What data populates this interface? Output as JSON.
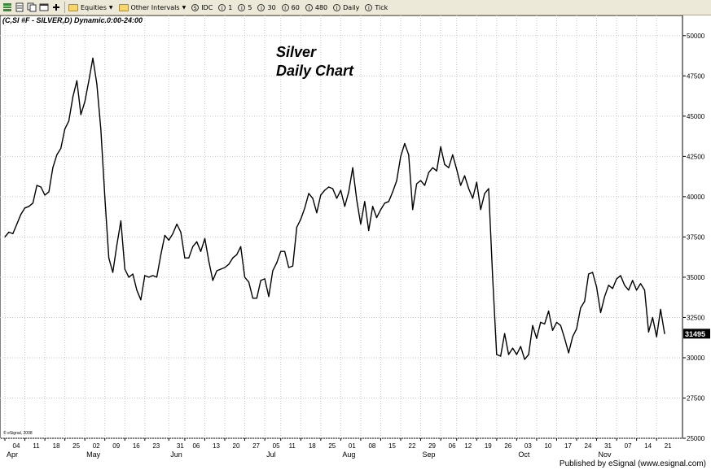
{
  "toolbar": {
    "items": [
      {
        "label": "Equities",
        "kind": "folder",
        "dropdown": true
      },
      {
        "label": "Other Intervals",
        "kind": "folder",
        "dropdown": true
      },
      {
        "label": "IDC",
        "kind": "interval",
        "glyph": "S"
      },
      {
        "label": "1",
        "kind": "interval",
        "glyph": "I"
      },
      {
        "label": "5",
        "kind": "interval",
        "glyph": "I"
      },
      {
        "label": "30",
        "kind": "interval",
        "glyph": "I"
      },
      {
        "label": "60",
        "kind": "interval",
        "glyph": "I"
      },
      {
        "label": "480",
        "kind": "interval",
        "glyph": "I"
      },
      {
        "label": "Daily",
        "kind": "interval",
        "glyph": "I"
      },
      {
        "label": "Tick",
        "kind": "interval",
        "glyph": "I"
      }
    ]
  },
  "chart": {
    "symbol_header": "(C,SI #F - SILVER,D) Dynamic.0:00-24:00",
    "title_line1": "Silver",
    "title_line2": "Daily Chart",
    "copyright": "© eSignal, 2008",
    "last_price_label": "31495",
    "colors": {
      "line": "#000000",
      "grid": "#c8c8c8",
      "axis": "#000000",
      "price_tag_bg": "#000000",
      "price_tag_text": "#ffffff"
    }
  },
  "footer": {
    "text": "Published by eSignal (www.esignal.com)"
  },
  "chart_data": {
    "type": "line",
    "title": "Silver Daily Chart",
    "ylim": [
      25000,
      51000
    ],
    "y_ticks": [
      25000,
      27500,
      30000,
      32500,
      35000,
      37500,
      40000,
      42500,
      45000,
      47500,
      50000
    ],
    "grid": true,
    "x_ticks": [
      "04",
      "11",
      "18",
      "25",
      "02",
      "09",
      "16",
      "23",
      "31",
      "06",
      "13",
      "20",
      "27",
      "05",
      "11",
      "18",
      "25",
      "01",
      "08",
      "15",
      "22",
      "29",
      "06",
      "12",
      "19",
      "26",
      "03",
      "10",
      "17",
      "24",
      "31",
      "07",
      "14",
      "21"
    ],
    "x_tick_index": [
      0,
      5,
      10,
      15,
      20,
      25,
      30,
      35,
      41,
      45,
      50,
      55,
      60,
      65,
      69,
      74,
      79,
      84,
      89,
      94,
      99,
      104,
      109,
      113,
      118,
      123,
      128,
      133,
      138,
      143,
      148,
      153,
      158,
      163
    ],
    "month_labels": [
      {
        "label": "Apr",
        "index": 0
      },
      {
        "label": "May",
        "index": 20
      },
      {
        "label": "Jun",
        "index": 41
      },
      {
        "label": "Jul",
        "index": 65
      },
      {
        "label": "Aug",
        "index": 84
      },
      {
        "label": "Sep",
        "index": 104
      },
      {
        "label": "Oct",
        "index": 128
      },
      {
        "label": "Nov",
        "index": 148
      }
    ],
    "series": [
      {
        "values": [
          37500,
          37800,
          37700,
          38300,
          38900,
          39300,
          39400,
          39600,
          40700,
          40600,
          40100,
          40300,
          41800,
          42600,
          43000,
          44200,
          44700,
          46200,
          47200,
          45100,
          45900,
          47200,
          48600,
          47000,
          44200,
          40000,
          36200,
          35300,
          37000,
          38500,
          35500,
          35000,
          35200,
          34200,
          33600,
          35100,
          35000,
          35100,
          35000,
          36400,
          37600,
          37300,
          37700,
          38300,
          37800,
          36200,
          36200,
          36900,
          37200,
          36600,
          37400,
          36000,
          34800,
          35400,
          35500,
          35600,
          35800,
          36200,
          36400,
          36900,
          35000,
          34700,
          33700,
          33700,
          34800,
          34900,
          33800,
          35400,
          35900,
          36600,
          36600,
          35600,
          35700,
          38100,
          38600,
          39300,
          40200,
          39900,
          39000,
          40100,
          40400,
          40600,
          40500,
          39900,
          40400,
          39400,
          40300,
          41800,
          39800,
          38300,
          39700,
          37900,
          39400,
          38700,
          39200,
          39600,
          39700,
          40300,
          41000,
          42500,
          43300,
          42600,
          39200,
          40800,
          41000,
          40700,
          41500,
          41800,
          41600,
          43100,
          42000,
          41800,
          42600,
          41700,
          40700,
          41300,
          40500,
          39900,
          40900,
          39200,
          40200,
          40500,
          35000,
          30200,
          30100,
          31500,
          30200,
          30600,
          30200,
          30700,
          29900,
          30200,
          32000,
          31200,
          32200,
          32100,
          32900,
          31700,
          32200,
          32000,
          31200,
          30300,
          31300,
          31800,
          33100,
          33500,
          35200,
          35300,
          34400,
          32800,
          33800,
          34500,
          34300,
          34900,
          35100,
          34500,
          34200,
          34800,
          34200,
          34600,
          34200,
          31600,
          32500,
          31300,
          33000,
          31495
        ]
      }
    ]
  }
}
